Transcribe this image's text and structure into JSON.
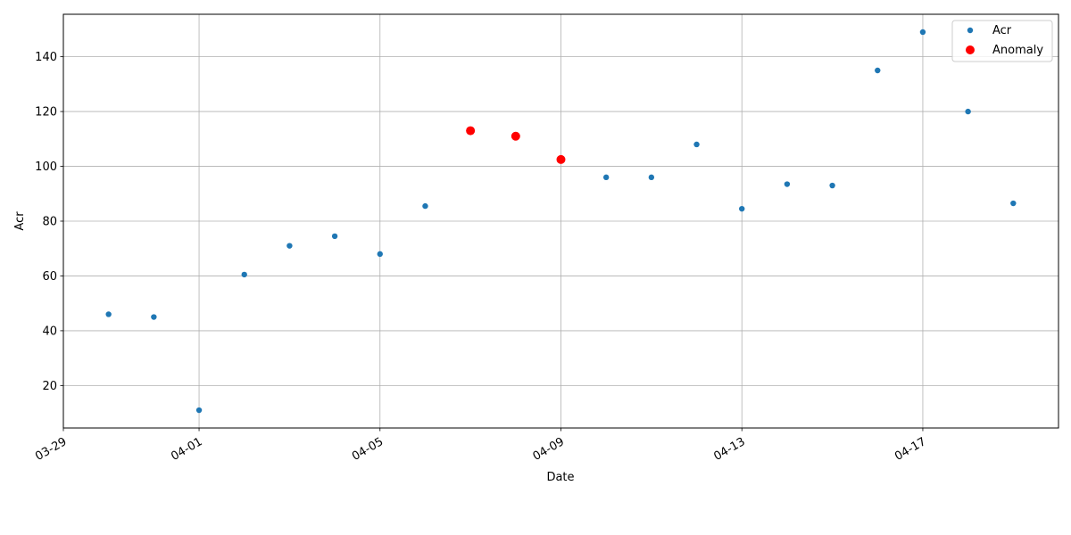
{
  "chart_data": {
    "type": "scatter",
    "xlabel": "Date",
    "ylabel": "Acr",
    "x_ticks": [
      "03-29",
      "04-01",
      "04-05",
      "04-09",
      "04-13",
      "04-17"
    ],
    "y_ticks": [
      20,
      40,
      60,
      80,
      100,
      120,
      140
    ],
    "xlim": [
      "2024-03-29",
      "2024-04-20"
    ],
    "ylim": [
      4.5,
      155.5
    ],
    "grid": true,
    "legend_position": "top-right",
    "series": [
      {
        "name": "Acr",
        "color": "#1f77b4",
        "points": [
          {
            "x": "2024-03-30",
            "y": 46
          },
          {
            "x": "2024-03-31",
            "y": 45
          },
          {
            "x": "2024-04-01",
            "y": 11
          },
          {
            "x": "2024-04-02",
            "y": 60.5
          },
          {
            "x": "2024-04-03",
            "y": 71
          },
          {
            "x": "2024-04-04",
            "y": 74.5
          },
          {
            "x": "2024-04-05",
            "y": 68
          },
          {
            "x": "2024-04-06",
            "y": 85.5
          },
          {
            "x": "2024-04-10",
            "y": 96
          },
          {
            "x": "2024-04-11",
            "y": 96
          },
          {
            "x": "2024-04-12",
            "y": 108
          },
          {
            "x": "2024-04-13",
            "y": 84.5
          },
          {
            "x": "2024-04-14",
            "y": 93.5
          },
          {
            "x": "2024-04-15",
            "y": 93
          },
          {
            "x": "2024-04-16",
            "y": 135
          },
          {
            "x": "2024-04-17",
            "y": 149
          },
          {
            "x": "2024-04-18",
            "y": 120
          },
          {
            "x": "2024-04-19",
            "y": 86.5
          }
        ]
      },
      {
        "name": "Anomaly",
        "color": "#ff0000",
        "points": [
          {
            "x": "2024-04-07",
            "y": 113
          },
          {
            "x": "2024-04-08",
            "y": 111
          },
          {
            "x": "2024-04-09",
            "y": 102.5
          }
        ]
      }
    ]
  }
}
